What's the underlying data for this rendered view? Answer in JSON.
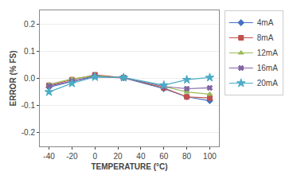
{
  "chart_data": {
    "type": "line",
    "x": [
      -40,
      -20,
      0,
      25,
      60,
      80,
      100
    ],
    "series": [
      {
        "name": "4mA",
        "color": "#4472c4",
        "marker": "diamond",
        "values": [
          -0.033,
          -0.012,
          0.01,
          0.002,
          -0.038,
          -0.068,
          -0.082
        ]
      },
      {
        "name": "8mA",
        "color": "#c0504d",
        "marker": "square",
        "values": [
          -0.026,
          -0.005,
          0.013,
          0.003,
          -0.035,
          -0.068,
          -0.072
        ]
      },
      {
        "name": "12mA",
        "color": "#9bbb59",
        "marker": "triangle-up",
        "values": [
          -0.022,
          -0.002,
          0.01,
          0.002,
          -0.03,
          -0.05,
          -0.058
        ]
      },
      {
        "name": "16mA",
        "color": "#8064a2",
        "marker": "x",
        "values": [
          -0.028,
          -0.01,
          0.006,
          0.002,
          -0.03,
          -0.038,
          -0.035
        ]
      },
      {
        "name": "20mA",
        "color": "#4bacc6",
        "marker": "star",
        "values": [
          -0.05,
          -0.018,
          0.005,
          0.003,
          -0.025,
          -0.005,
          0.003
        ]
      }
    ],
    "x_label": "TEMPERATURE (°C)",
    "y_label": "ERROR (% FS)",
    "xlim": [
      -48,
      108
    ],
    "xticks": [
      -40,
      -20,
      0,
      20,
      40,
      60,
      80,
      100
    ],
    "ylim": [
      -0.25,
      0.25
    ],
    "yticks": [
      -0.2,
      -0.1,
      {
        "value": 0.0,
        "label": "0.0"
      },
      0.1,
      0.2
    ],
    "grid": "y",
    "legend": "right"
  }
}
